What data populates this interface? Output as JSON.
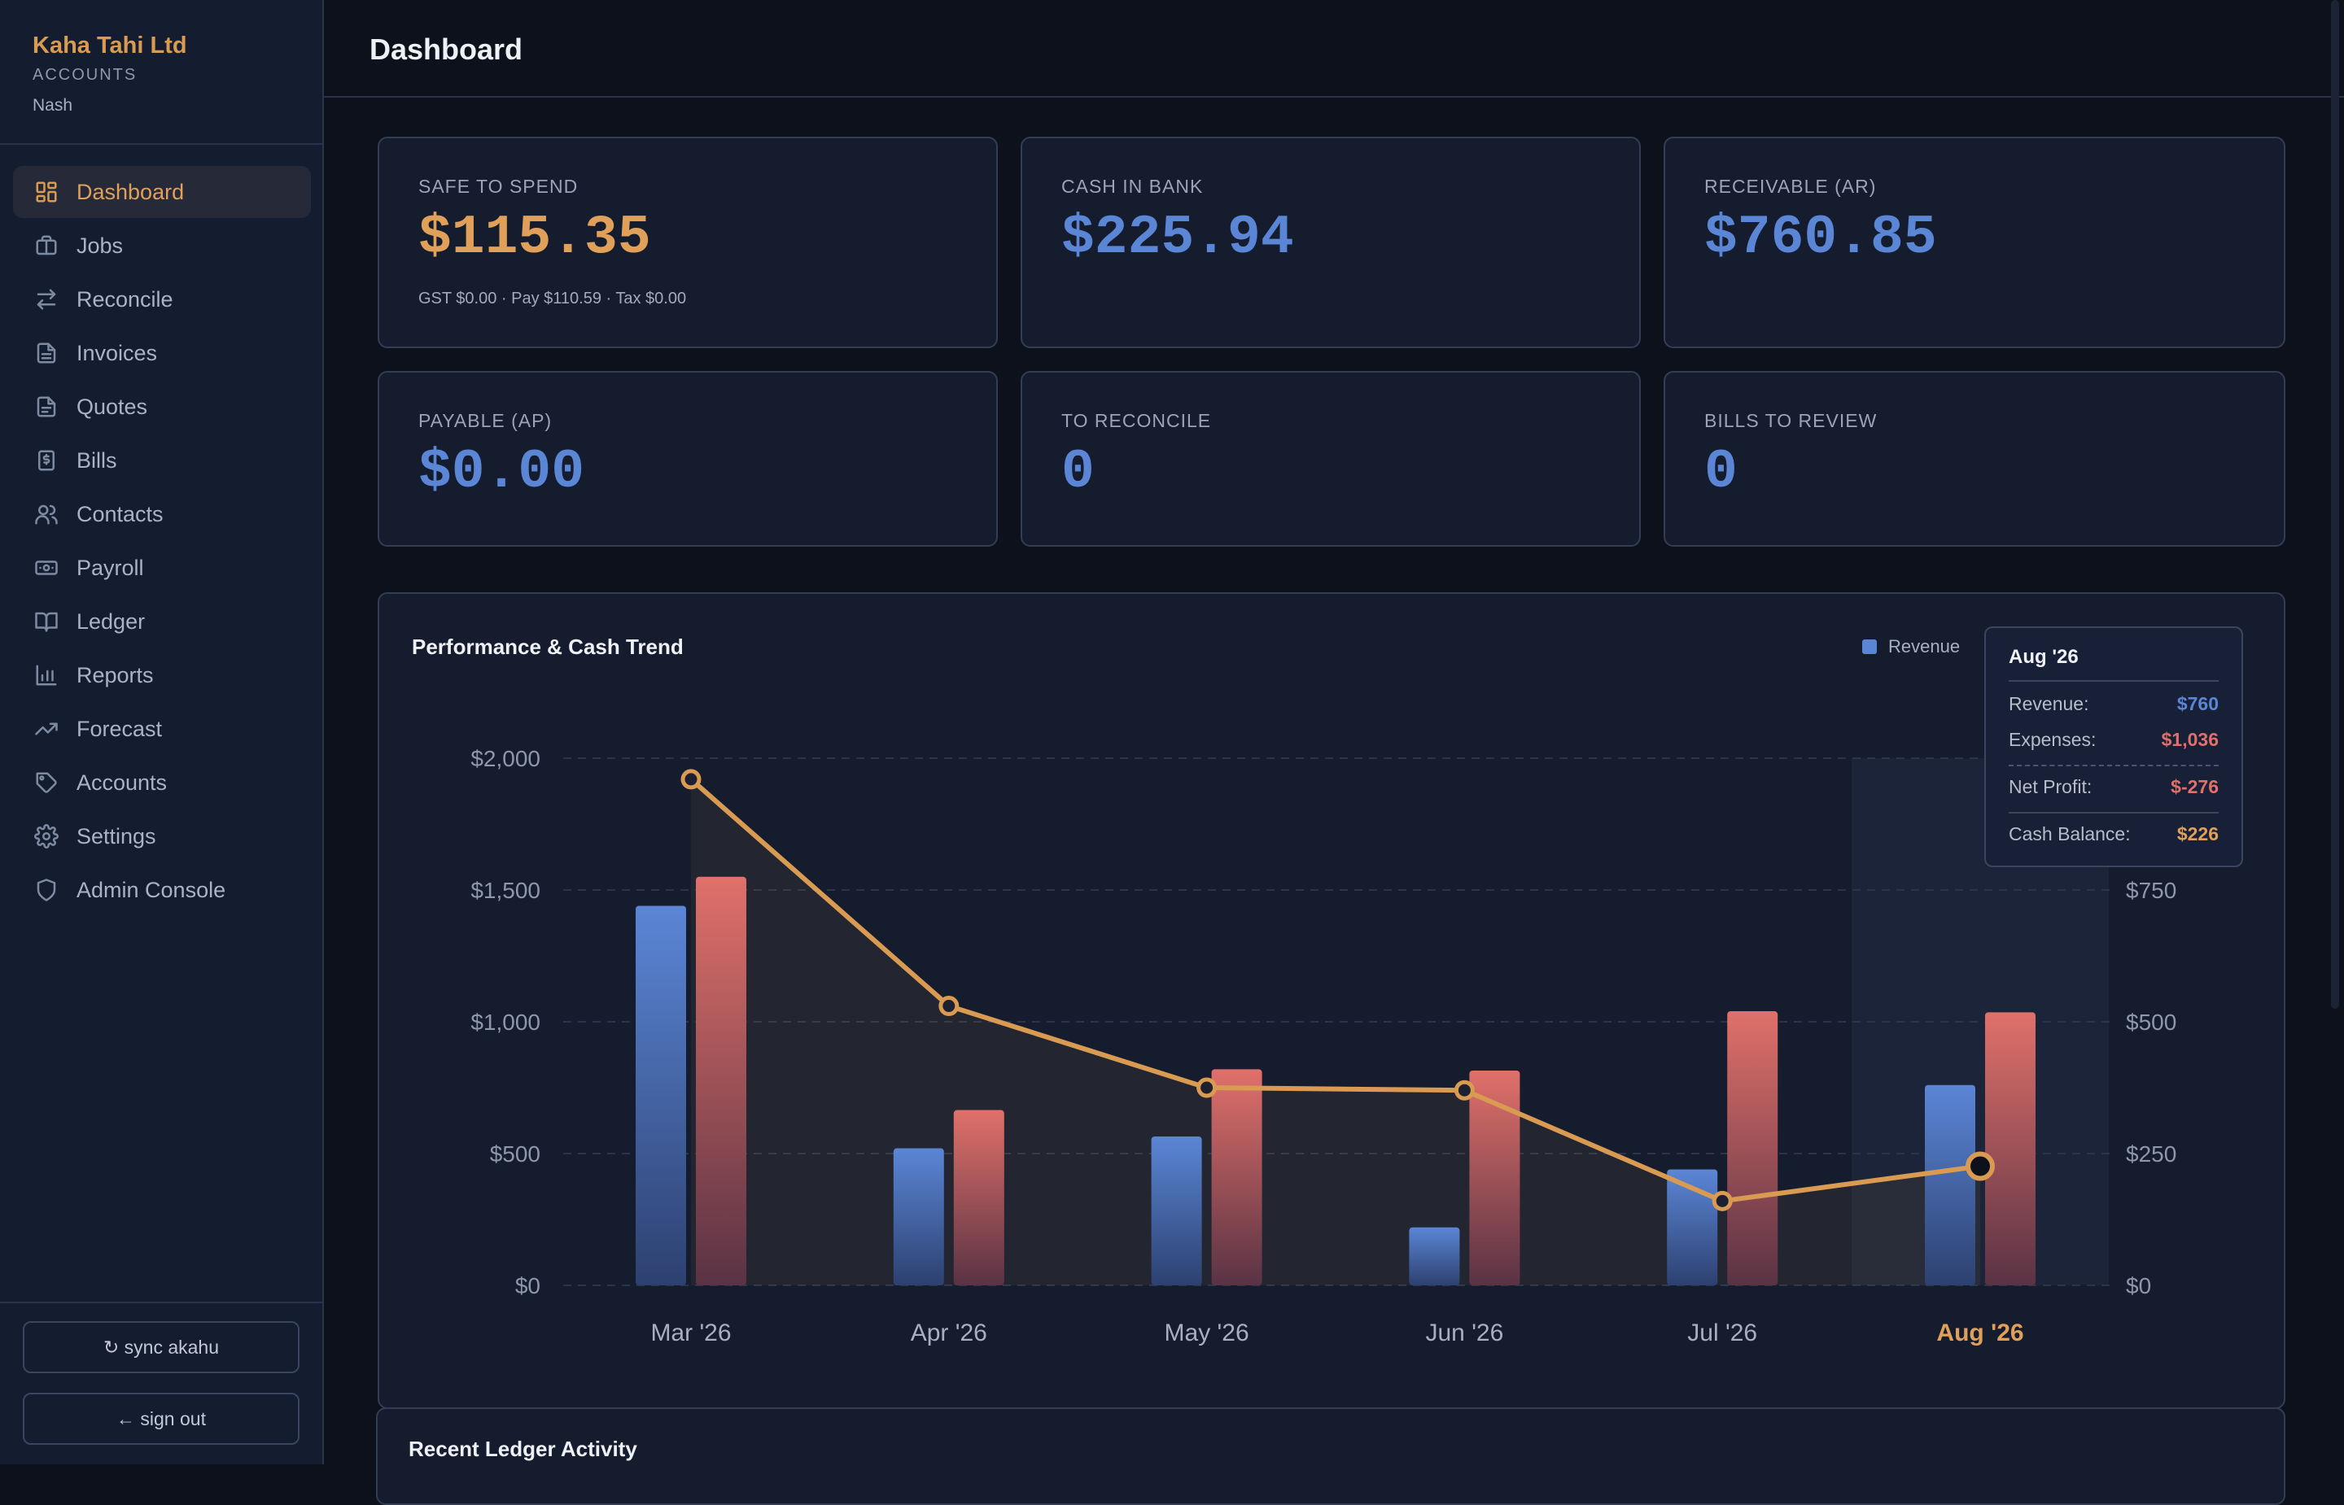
{
  "sidebar": {
    "company": "Kaha Tahi Ltd",
    "section": "ACCOUNTS",
    "user": "Nash",
    "items": [
      {
        "label": "Dashboard",
        "icon": "dashboard-icon",
        "active": true
      },
      {
        "label": "Jobs",
        "icon": "briefcase-icon"
      },
      {
        "label": "Reconcile",
        "icon": "swap-arrows-icon"
      },
      {
        "label": "Invoices",
        "icon": "document-icon"
      },
      {
        "label": "Quotes",
        "icon": "document-icon"
      },
      {
        "label": "Bills",
        "icon": "dollar-receipt-icon"
      },
      {
        "label": "Contacts",
        "icon": "users-icon"
      },
      {
        "label": "Payroll",
        "icon": "banknote-icon"
      },
      {
        "label": "Ledger",
        "icon": "open-book-icon"
      },
      {
        "label": "Reports",
        "icon": "bar-chart-icon"
      },
      {
        "label": "Forecast",
        "icon": "trend-up-icon"
      },
      {
        "label": "Accounts",
        "icon": "tag-icon"
      },
      {
        "label": "Settings",
        "icon": "gear-icon"
      },
      {
        "label": "Admin Console",
        "icon": "shield-icon"
      }
    ],
    "sync_label": "↻ sync akahu",
    "signout_label": "← sign out"
  },
  "header": {
    "title": "Dashboard"
  },
  "kpis": {
    "safe": {
      "label": "SAFE TO SPEND",
      "value": "$115.35",
      "sub": "GST $0.00 · Pay $110.59 · Tax $0.00"
    },
    "cash": {
      "label": "CASH IN BANK",
      "value": "$225.94"
    },
    "ar": {
      "label": "RECEIVABLE (AR)",
      "value": "$760.85"
    },
    "ap": {
      "label": "PAYABLE (AP)",
      "value": "$0.00"
    },
    "reconcile": {
      "label": "TO RECONCILE",
      "value": "0"
    },
    "bills": {
      "label": "BILLS TO REVIEW",
      "value": "0"
    }
  },
  "performance": {
    "title": "Performance & Cash Trend",
    "legend_revenue": "Revenue",
    "tooltip": {
      "month": "Aug '26",
      "revenue_label": "Revenue:",
      "revenue": "$760",
      "expenses_label": "Expenses:",
      "expenses": "$1,036",
      "net_label": "Net Profit:",
      "net": "$-276",
      "cash_label": "Cash Balance:",
      "cash": "$226"
    }
  },
  "colors": {
    "accent": "#d99a52",
    "revenue": "#5b86d6",
    "expenses": "#e0706a",
    "cash_line": "#d99a52"
  },
  "chart_data": {
    "type": "bar",
    "categories": [
      "Mar '26",
      "Apr '26",
      "May '26",
      "Jun '26",
      "Jul '26",
      "Aug '26"
    ],
    "highlighted_category": "Aug '26",
    "series": [
      {
        "name": "Revenue",
        "type": "bar",
        "axis": "left",
        "values": [
          1440,
          520,
          565,
          220,
          440,
          760
        ]
      },
      {
        "type": "bar",
        "axis": "left",
        "values": [
          1550,
          665,
          820,
          815,
          1040,
          1036
        ]
      },
      {
        "type": "line",
        "axis": "right",
        "values": [
          960,
          530,
          375,
          370,
          160,
          226
        ]
      }
    ],
    "y_left": {
      "ticks": [
        0,
        500,
        1000,
        1500,
        2000
      ],
      "tick_labels": [
        "$0",
        "$500",
        "$1,000",
        "$1,500",
        "$2,000"
      ],
      "ylim": [
        0,
        2000
      ]
    },
    "y_right": {
      "ticks": [
        0,
        250,
        500,
        750
      ],
      "tick_labels": [
        "$0",
        "$250",
        "$500",
        "$750"
      ],
      "ylim": [
        0,
        1000
      ]
    },
    "grid": true,
    "legend_placement": "top-right"
  },
  "recent": {
    "title": "Recent Ledger Activity"
  }
}
